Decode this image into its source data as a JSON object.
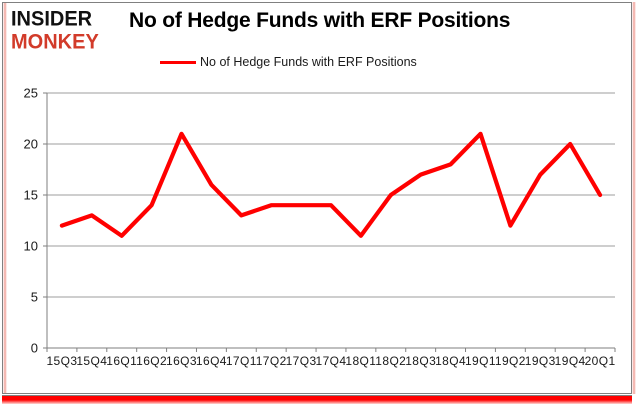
{
  "page": {
    "background": "#ffffff",
    "frame_border_color": "#808080",
    "side_stripe_color": "#f0a29a",
    "bottom_bar_color": "#ff0000"
  },
  "logo": {
    "line1": "INSIDER",
    "line2": "MONKEY",
    "line1_color": "#111111",
    "line2_color": "#d23b2a"
  },
  "title": "No of Hedge Funds with ERF Positions",
  "legend": {
    "label": "No of Hedge Funds with ERF Positions",
    "swatch_color": "#ff0000"
  },
  "chart_data": {
    "type": "line",
    "title": "No of Hedge Funds with ERF Positions",
    "categories": [
      "15Q3",
      "15Q4",
      "16Q1",
      "16Q2",
      "16Q3",
      "16Q4",
      "17Q1",
      "17Q2",
      "17Q3",
      "17Q4",
      "18Q1",
      "18Q2",
      "18Q3",
      "18Q4",
      "19Q1",
      "19Q2",
      "19Q3",
      "19Q4",
      "20Q1"
    ],
    "series": [
      {
        "name": "No of Hedge Funds with ERF Positions",
        "color": "#ff0000",
        "values": [
          12,
          13,
          11,
          14,
          21,
          16,
          13,
          14,
          14,
          14,
          11,
          15,
          17,
          18,
          21,
          12,
          17,
          20,
          15
        ]
      }
    ],
    "ylim": [
      0,
      25
    ],
    "yticks": [
      0,
      5,
      10,
      15,
      20,
      25
    ],
    "grid": true,
    "legend_position": "top-center",
    "gridline_color": "#9e9e9e",
    "axis_color": "#7f7f7f",
    "tick_label_color": "#1a1a1a"
  }
}
